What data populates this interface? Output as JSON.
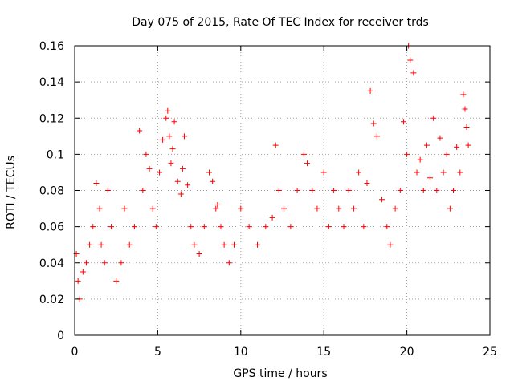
{
  "chart_data": {
    "type": "scatter",
    "title": "Day 075 of 2015, Rate Of TEC Index for receiver trds",
    "xlabel": "GPS time / hours",
    "ylabel": "ROTI / TECUs",
    "xlim": [
      0,
      25
    ],
    "ylim": [
      0,
      0.16
    ],
    "xticks": [
      0,
      5,
      10,
      15,
      20,
      25
    ],
    "yticks": [
      0,
      0.02,
      0.04,
      0.06,
      0.08,
      0.1,
      0.12,
      0.14,
      0.16
    ],
    "xtick_labels": [
      "0",
      "5",
      "10",
      "15",
      "20",
      "25"
    ],
    "ytick_labels": [
      "0",
      "0.02",
      "0.04",
      "0.06",
      "0.08",
      "0.1",
      "0.12",
      "0.14",
      "0.16"
    ],
    "grid": true,
    "marker": "+",
    "color": "#ff0000",
    "series": [
      {
        "x": [
          0.1,
          0.2,
          0.3,
          0.5,
          0.7,
          0.9,
          1.1,
          1.3,
          1.5,
          1.6,
          1.8,
          2.0,
          2.2,
          2.5,
          2.8,
          3.0,
          3.3,
          3.6,
          3.9,
          4.1,
          4.3,
          4.5,
          4.7,
          4.9,
          5.1,
          5.3,
          5.5,
          5.6,
          5.7,
          5.8,
          5.9,
          6.0,
          6.2,
          6.4,
          6.5,
          6.6,
          6.8,
          7.0,
          7.2,
          7.5,
          7.8,
          8.1,
          8.3,
          8.5,
          8.6,
          8.8,
          9.0,
          9.3,
          9.6,
          10.0,
          10.5,
          11.0,
          11.5,
          11.9,
          12.1,
          12.3,
          12.6,
          13.0,
          13.4,
          13.8,
          14.0,
          14.3,
          14.6,
          15.0,
          15.3,
          15.6,
          15.9,
          16.2,
          16.5,
          16.8,
          17.1,
          17.4,
          17.6,
          17.8,
          18.0,
          18.2,
          18.5,
          18.8,
          19.0,
          19.3,
          19.6,
          19.8,
          20.0,
          20.1,
          20.2,
          20.4,
          20.6,
          20.8,
          21.0,
          21.2,
          21.4,
          21.6,
          21.8,
          22.0,
          22.2,
          22.4,
          22.6,
          22.8,
          23.0,
          23.2,
          23.4,
          23.5,
          23.6,
          23.7
        ],
        "y": [
          0.045,
          0.03,
          0.02,
          0.035,
          0.04,
          0.05,
          0.06,
          0.084,
          0.07,
          0.05,
          0.04,
          0.08,
          0.06,
          0.03,
          0.04,
          0.07,
          0.05,
          0.06,
          0.113,
          0.08,
          0.1,
          0.092,
          0.07,
          0.06,
          0.09,
          0.108,
          0.12,
          0.124,
          0.11,
          0.095,
          0.103,
          0.118,
          0.085,
          0.078,
          0.092,
          0.11,
          0.083,
          0.06,
          0.05,
          0.045,
          0.06,
          0.09,
          0.085,
          0.07,
          0.072,
          0.06,
          0.05,
          0.04,
          0.05,
          0.07,
          0.06,
          0.05,
          0.06,
          0.065,
          0.105,
          0.08,
          0.07,
          0.06,
          0.08,
          0.1,
          0.095,
          0.08,
          0.07,
          0.09,
          0.06,
          0.08,
          0.07,
          0.06,
          0.08,
          0.07,
          0.09,
          0.06,
          0.084,
          0.135,
          0.117,
          0.11,
          0.075,
          0.06,
          0.05,
          0.07,
          0.08,
          0.118,
          0.1,
          0.16,
          0.152,
          0.145,
          0.09,
          0.097,
          0.08,
          0.105,
          0.087,
          0.12,
          0.08,
          0.109,
          0.09,
          0.1,
          0.07,
          0.08,
          0.104,
          0.09,
          0.133,
          0.125,
          0.115,
          0.105
        ]
      }
    ]
  }
}
